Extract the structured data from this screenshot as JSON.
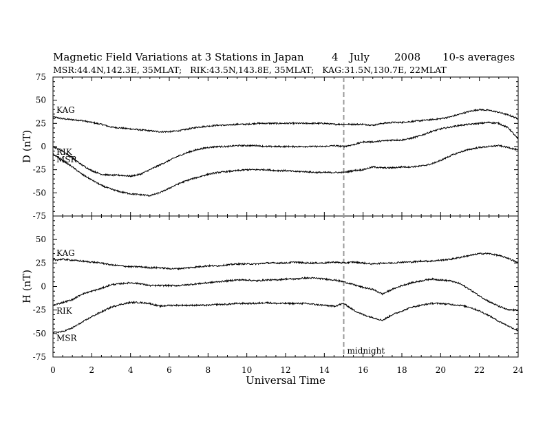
{
  "header": {
    "title": "Magnetic Field Variations at 3 Stations in Japan",
    "day": "4",
    "month": "July",
    "year": "2008",
    "averaging": "10-s averages",
    "stations": "MSR:44.4N,142.3E, 35MLAT;   RIK:43.5N,143.8E, 35MLAT;   KAG:31.5N,130.7E, 22MLAT"
  },
  "chart_data": {
    "type": "line",
    "xlabel": "Universal Time",
    "xlim": [
      0,
      24
    ],
    "xticks": [
      0,
      2,
      4,
      6,
      8,
      10,
      12,
      14,
      16,
      18,
      20,
      22,
      24
    ],
    "marker": {
      "x": 15,
      "label": "midnight",
      "style": "dashed",
      "color": "#999999"
    },
    "line_color": "#000000",
    "panels": [
      {
        "ylabel": "D (nT)",
        "ylim": [
          -75,
          75
        ],
        "yticks": [
          -75,
          -50,
          -25,
          0,
          25,
          50,
          75
        ],
        "series": [
          {
            "name": "KAG",
            "x": [
              0,
              0.5,
              1,
              1.5,
              2,
              2.5,
              3,
              3.5,
              4,
              4.5,
              5,
              5.5,
              6,
              6.5,
              7,
              7.5,
              8,
              8.5,
              9,
              9.5,
              10,
              10.5,
              11,
              11.5,
              12,
              12.5,
              13,
              13.5,
              14,
              14.5,
              15,
              15.5,
              16,
              16.5,
              17,
              17.5,
              18,
              18.5,
              19,
              19.5,
              20,
              20.5,
              21,
              21.5,
              22,
              22.5,
              23,
              23.5,
              24
            ],
            "y": [
              32,
              30,
              29,
              28,
              26,
              24,
              21,
              20,
              19,
              18,
              17,
              16,
              16,
              17,
              19,
              21,
              22,
              23,
              23,
              24,
              24,
              25,
              25,
              25,
              25,
              25,
              25,
              25,
              25,
              24,
              24,
              24,
              24,
              23,
              25,
              26,
              26,
              27,
              28,
              29,
              30,
              32,
              35,
              38,
              40,
              39,
              37,
              34,
              30
            ]
          },
          {
            "name": "RIK",
            "x": [
              0,
              0.5,
              1,
              1.5,
              2,
              2.5,
              3,
              3.5,
              4,
              4.5,
              5,
              5.5,
              6,
              6.5,
              7,
              7.5,
              8,
              8.5,
              9,
              9.5,
              10,
              10.5,
              11,
              11.5,
              12,
              12.5,
              13,
              13.5,
              14,
              14.5,
              15,
              15.5,
              16,
              16.5,
              17,
              17.5,
              18,
              18.5,
              19,
              19.5,
              20,
              20.5,
              21,
              21.5,
              22,
              22.5,
              23,
              23.5,
              24
            ],
            "y": [
              0,
              -5,
              -12,
              -20,
              -26,
              -30,
              -31,
              -31,
              -32,
              -30,
              -25,
              -20,
              -15,
              -10,
              -6,
              -3,
              -1,
              0,
              0,
              1,
              1,
              1,
              0,
              0,
              0,
              0,
              0,
              0,
              0,
              1,
              0,
              2,
              5,
              5,
              6,
              7,
              7,
              9,
              12,
              16,
              19,
              21,
              23,
              24,
              25,
              26,
              25,
              20,
              8
            ]
          },
          {
            "name": "MSR",
            "x": [
              0,
              0.5,
              1,
              1.5,
              2,
              2.5,
              3,
              3.5,
              4,
              4.5,
              5,
              5.5,
              6,
              6.5,
              7,
              7.5,
              8,
              8.5,
              9,
              9.5,
              10,
              10.5,
              11,
              11.5,
              12,
              12.5,
              13,
              13.5,
              14,
              14.5,
              15,
              15.5,
              16,
              16.5,
              17,
              17.5,
              18,
              18.5,
              19,
              19.5,
              20,
              20.5,
              21,
              21.5,
              22,
              22.5,
              23,
              23.5,
              24
            ],
            "y": [
              -8,
              -15,
              -22,
              -30,
              -36,
              -42,
              -46,
              -49,
              -51,
              -52,
              -53,
              -50,
              -45,
              -40,
              -36,
              -33,
              -30,
              -28,
              -27,
              -26,
              -25,
              -25,
              -25,
              -26,
              -26,
              -27,
              -27,
              -28,
              -28,
              -28,
              -28,
              -26,
              -25,
              -22,
              -23,
              -23,
              -22,
              -22,
              -21,
              -19,
              -15,
              -10,
              -6,
              -3,
              -1,
              0,
              1,
              -1,
              -4
            ]
          }
        ]
      },
      {
        "ylabel": "H (nT)",
        "ylim": [
          -75,
          75
        ],
        "yticks": [
          -75,
          -50,
          -25,
          0,
          25,
          50,
          75
        ],
        "series": [
          {
            "name": "KAG",
            "x": [
              0,
              0.5,
              1,
              1.5,
              2,
              2.5,
              3,
              3.5,
              4,
              4.5,
              5,
              5.5,
              6,
              6.5,
              7,
              7.5,
              8,
              8.5,
              9,
              9.5,
              10,
              10.5,
              11,
              11.5,
              12,
              12.5,
              13,
              13.5,
              14,
              14.5,
              15,
              15.5,
              16,
              16.5,
              17,
              17.5,
              18,
              18.5,
              19,
              19.5,
              20,
              20.5,
              21,
              21.5,
              22,
              22.5,
              23,
              23.5,
              24
            ],
            "y": [
              28,
              29,
              28,
              27,
              26,
              25,
              23,
              22,
              21,
              21,
              20,
              20,
              19,
              19,
              20,
              21,
              22,
              22,
              23,
              24,
              24,
              24,
              25,
              25,
              25,
              26,
              25,
              25,
              25,
              26,
              25,
              26,
              25,
              24,
              25,
              25,
              26,
              26,
              27,
              27,
              28,
              29,
              31,
              33,
              35,
              35,
              33,
              30,
              25
            ]
          },
          {
            "name": "RIK",
            "x": [
              0,
              0.5,
              1,
              1.5,
              2,
              2.5,
              3,
              3.5,
              4,
              4.5,
              5,
              5.5,
              6,
              6.5,
              7,
              7.5,
              8,
              8.5,
              9,
              9.5,
              10,
              10.5,
              11,
              11.5,
              12,
              12.5,
              13,
              13.5,
              14,
              14.5,
              15,
              15.5,
              16,
              16.5,
              17,
              17.5,
              18,
              18.5,
              19,
              19.5,
              20,
              20.5,
              21,
              21.5,
              22,
              22.5,
              23,
              23.5,
              24
            ],
            "y": [
              -20,
              -17,
              -14,
              -8,
              -5,
              -2,
              2,
              3,
              4,
              3,
              1,
              1,
              1,
              1,
              2,
              3,
              4,
              5,
              6,
              7,
              7,
              6,
              7,
              7,
              8,
              8,
              9,
              9,
              8,
              7,
              5,
              2,
              -1,
              -3,
              -8,
              -3,
              1,
              4,
              6,
              8,
              7,
              6,
              3,
              -3,
              -10,
              -16,
              -21,
              -25,
              -25
            ]
          },
          {
            "name": "MSR",
            "x": [
              0,
              0.5,
              1,
              1.5,
              2,
              2.5,
              3,
              3.5,
              4,
              4.5,
              5,
              5.5,
              6,
              6.5,
              7,
              7.5,
              8,
              8.5,
              9,
              9.5,
              10,
              10.5,
              11,
              11.5,
              12,
              12.5,
              13,
              13.5,
              14,
              14.5,
              15,
              15.5,
              16,
              16.5,
              17,
              17.5,
              18,
              18.5,
              19,
              19.5,
              20,
              20.5,
              21,
              21.5,
              22,
              22.5,
              23,
              23.5,
              24
            ],
            "y": [
              -49,
              -48,
              -44,
              -38,
              -32,
              -27,
              -22,
              -19,
              -17,
              -17,
              -18,
              -21,
              -20,
              -20,
              -20,
              -20,
              -20,
              -19,
              -19,
              -18,
              -18,
              -18,
              -17,
              -18,
              -18,
              -18,
              -18,
              -19,
              -20,
              -21,
              -18,
              -25,
              -30,
              -33,
              -36,
              -30,
              -26,
              -22,
              -20,
              -18,
              -18,
              -19,
              -20,
              -22,
              -26,
              -31,
              -37,
              -42,
              -47
            ]
          }
        ]
      }
    ]
  }
}
